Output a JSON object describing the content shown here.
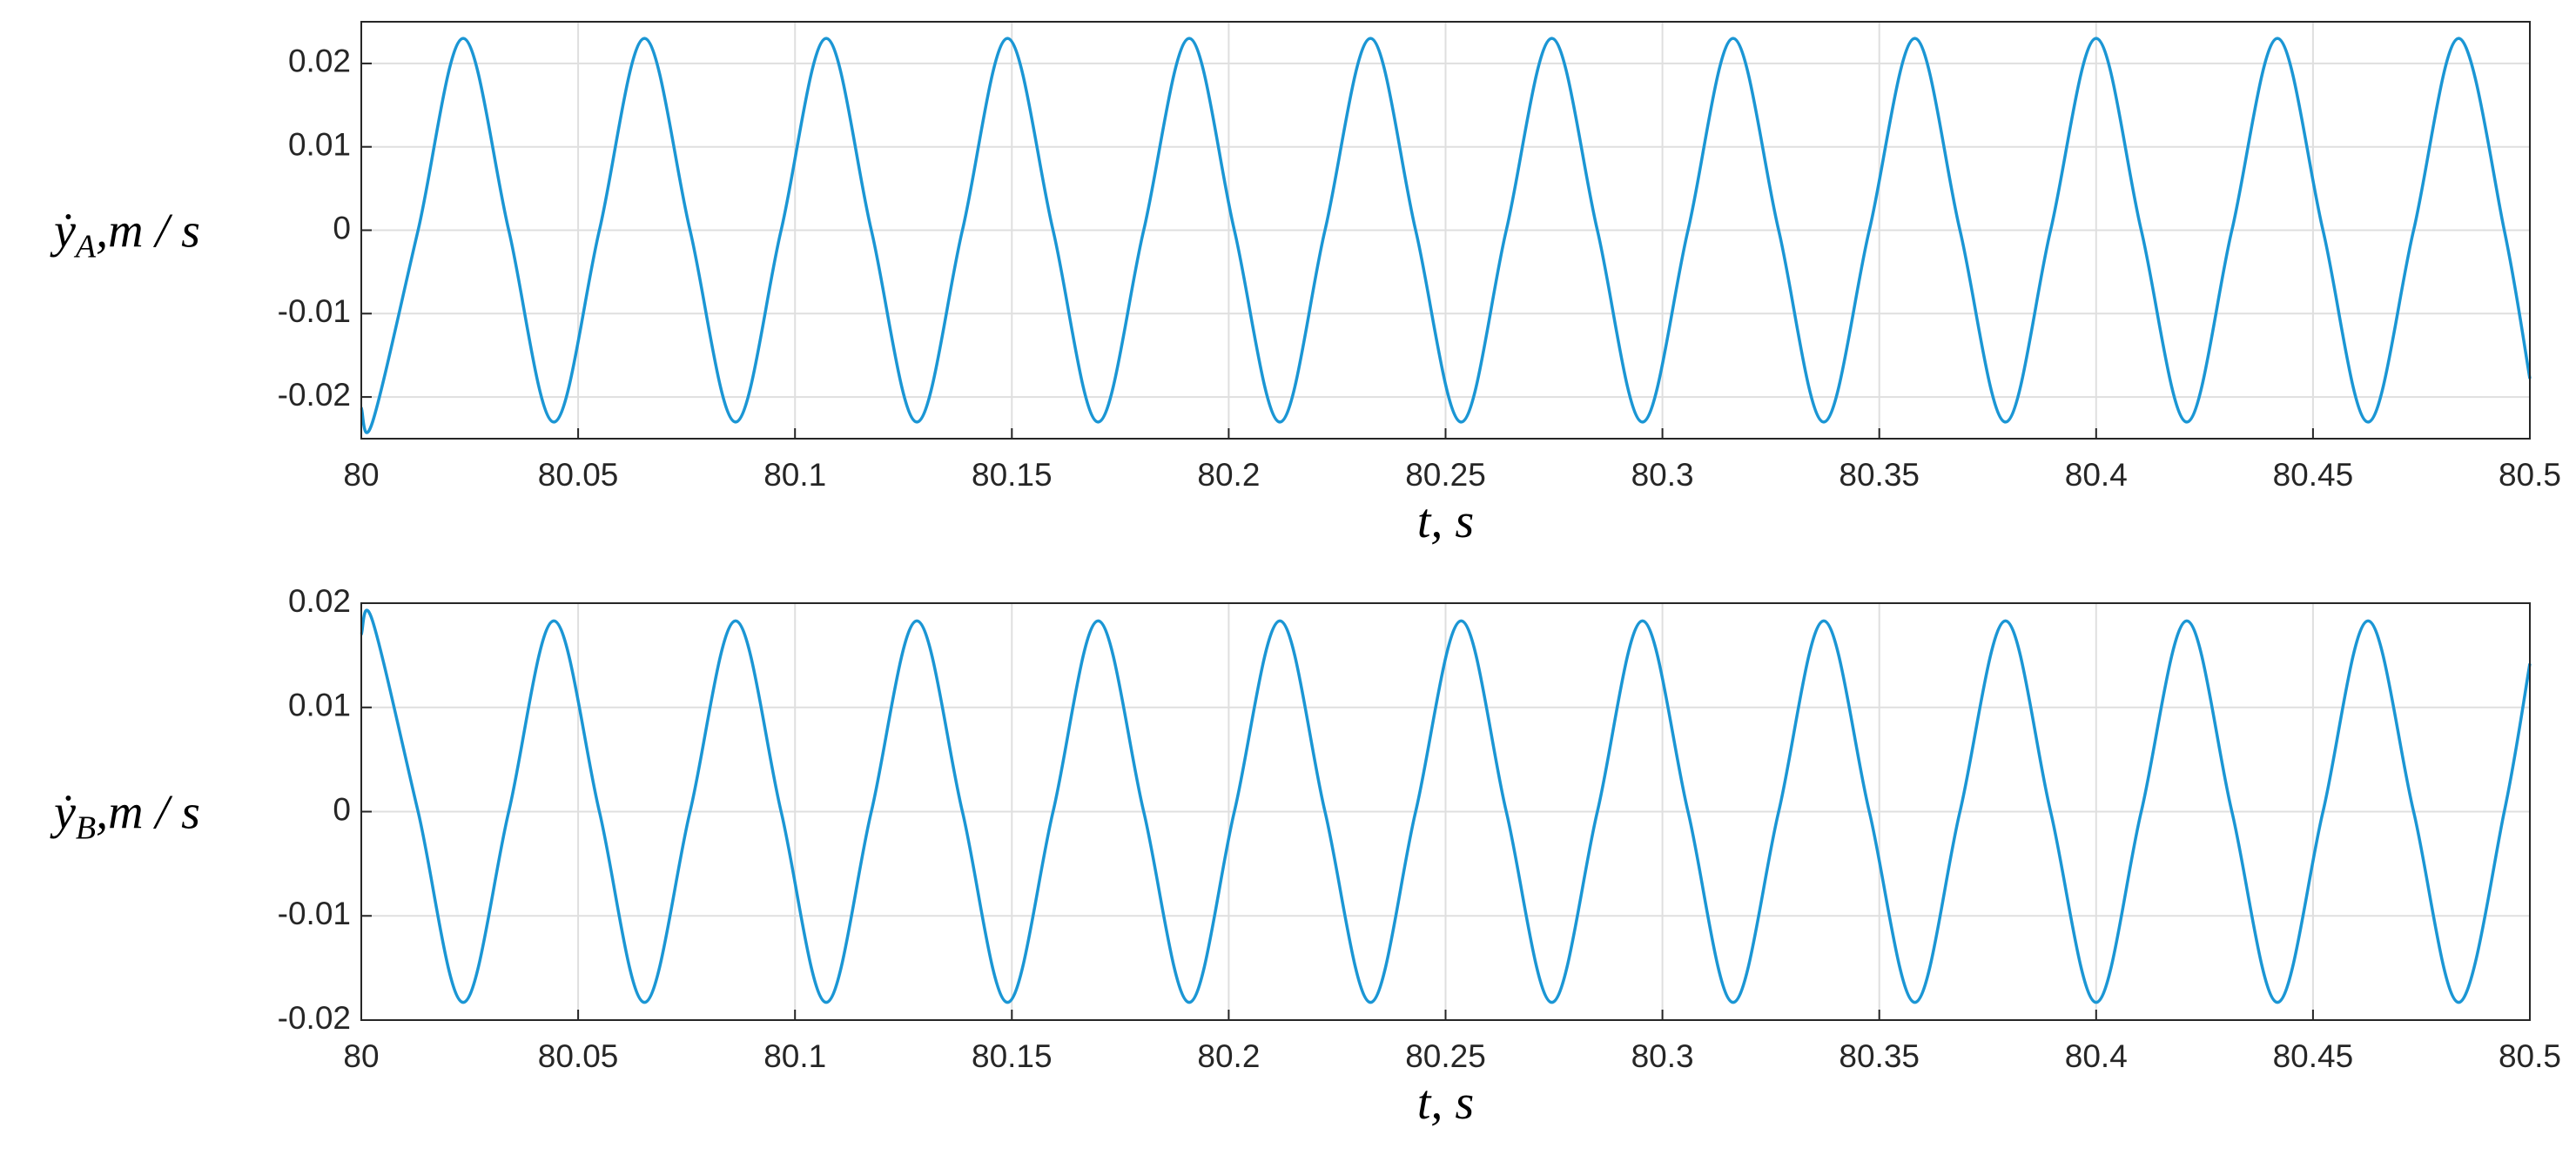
{
  "chart_data": [
    {
      "type": "line",
      "ylabel": {
        "symbol": "ẏ",
        "subscript": "A",
        "unit": ",m / s"
      },
      "xlabel": "t, s",
      "xlim": [
        80,
        80.5
      ],
      "xticks": [
        80,
        80.05,
        80.1,
        80.15,
        80.2,
        80.25,
        80.3,
        80.35,
        80.4,
        80.45,
        80.5
      ],
      "ylim": [
        -0.025,
        0.025
      ],
      "yticks": [
        -0.02,
        -0.01,
        0,
        0.01,
        0.02
      ],
      "grid": true,
      "series": [
        {
          "color": "#1b96d4",
          "x": [
            80,
            80.0026,
            80.0131,
            80.0235,
            80.034,
            80.0444,
            80.0549,
            80.0653,
            80.0758,
            80.0863,
            80.0968,
            80.1072,
            80.1176,
            80.1281,
            80.1386,
            80.149,
            80.1595,
            80.1699,
            80.1804,
            80.1909,
            80.2013,
            80.2118,
            80.2222,
            80.2327,
            80.2431,
            80.2536,
            80.264,
            80.2745,
            80.285,
            80.2954,
            80.3059,
            80.3163,
            80.3268,
            80.3372,
            80.3477,
            80.3582,
            80.3686,
            80.3791,
            80.3895,
            80.4,
            80.4104,
            80.4209,
            80.4313,
            80.4418,
            80.4523,
            80.4627,
            80.4732,
            80.4836,
            80.4941,
            80.5
          ],
          "values": [
            -0.0213,
            -0.023,
            0,
            0.023,
            0,
            -0.023,
            0,
            0.023,
            0,
            -0.023,
            0,
            0.023,
            0,
            -0.023,
            0,
            0.023,
            0,
            -0.023,
            0,
            0.023,
            0,
            -0.023,
            0,
            0.023,
            0,
            -0.023,
            0,
            0.023,
            0,
            -0.023,
            0,
            0.023,
            0,
            -0.023,
            0,
            0.023,
            0,
            -0.023,
            0,
            0.023,
            0,
            -0.023,
            0,
            0.023,
            0,
            -0.023,
            0,
            0.023,
            0,
            -0.0178
          ]
        }
      ]
    },
    {
      "type": "line",
      "ylabel": {
        "symbol": "ẏ",
        "subscript": "B",
        "unit": ",m / s"
      },
      "xlabel": "t, s",
      "xlim": [
        80,
        80.5
      ],
      "xticks": [
        80,
        80.05,
        80.1,
        80.15,
        80.2,
        80.25,
        80.3,
        80.35,
        80.4,
        80.45,
        80.5
      ],
      "ylim": [
        -0.02,
        0.02
      ],
      "yticks": [
        -0.02,
        -0.01,
        0,
        0.01,
        0.02
      ],
      "grid": true,
      "series": [
        {
          "color": "#1b96d4",
          "x": [
            80,
            80.0026,
            80.0131,
            80.0235,
            80.034,
            80.0444,
            80.0549,
            80.0653,
            80.0758,
            80.0863,
            80.0968,
            80.1072,
            80.1176,
            80.1281,
            80.1386,
            80.149,
            80.1595,
            80.1699,
            80.1804,
            80.1909,
            80.2013,
            80.2118,
            80.2222,
            80.2327,
            80.2431,
            80.2536,
            80.264,
            80.2745,
            80.285,
            80.2954,
            80.3059,
            80.3163,
            80.3268,
            80.3372,
            80.3477,
            80.3582,
            80.3686,
            80.3791,
            80.3895,
            80.4,
            80.4104,
            80.4209,
            80.4313,
            80.4418,
            80.4523,
            80.4627,
            80.4732,
            80.4836,
            80.4941,
            80.5
          ],
          "values": [
            0.017,
            0.0183,
            0,
            -0.0183,
            0,
            0.0183,
            0,
            -0.0183,
            0,
            0.0183,
            0,
            -0.0183,
            0,
            0.0183,
            0,
            -0.0183,
            0,
            0.0183,
            0,
            -0.0183,
            0,
            0.0183,
            0,
            -0.0183,
            0,
            0.0183,
            0,
            -0.0183,
            0,
            0.0183,
            0,
            -0.0183,
            0,
            0.0183,
            0,
            -0.0183,
            0,
            0.0183,
            0,
            -0.0183,
            0,
            0.0183,
            0,
            -0.0183,
            0,
            0.0183,
            0,
            -0.0183,
            0,
            0.0142
          ]
        }
      ]
    }
  ]
}
